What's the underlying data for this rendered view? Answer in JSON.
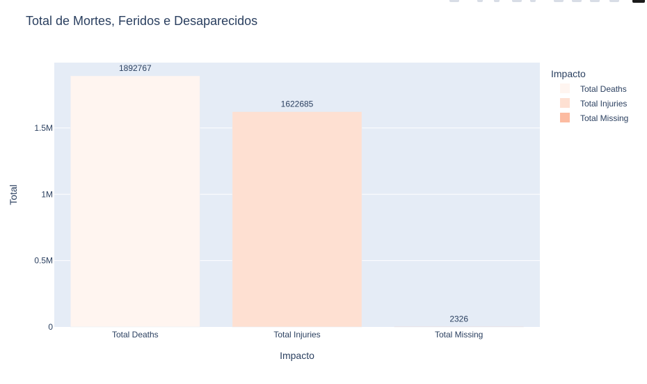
{
  "chart_data": {
    "type": "bar",
    "title": "Total de Mortes, Feridos e Desaparecidos",
    "xlabel": "Impacto",
    "ylabel": "Total",
    "categories": [
      "Total Deaths",
      "Total Injuries",
      "Total Missing"
    ],
    "values": [
      1892767,
      1622685,
      2326
    ],
    "data_labels": [
      "1892767",
      "1622685",
      "2326"
    ],
    "colors": [
      "#fff5f0",
      "#fee0d2",
      "#fcbba1"
    ],
    "ylim": [
      0,
      1992386
    ],
    "yticks": [
      0,
      500000,
      1000000,
      1500000
    ],
    "ytick_labels": [
      "0",
      "0.5M",
      "1M",
      "1.5M"
    ],
    "grid": true,
    "plot_bg": "#e5ecf6",
    "legend": {
      "title": "Impacto",
      "placement": "top-right",
      "items": [
        "Total Deaths",
        "Total Injuries",
        "Total Missing"
      ]
    }
  },
  "toolbar": {
    "icons": [
      "camera-icon",
      "zoom-icon",
      "pan-icon",
      "box-select-icon",
      "lasso-icon",
      "zoom-in-icon",
      "zoom-out-icon",
      "autoscale-icon",
      "reset-axes-icon",
      "plotly-logo-icon"
    ]
  }
}
